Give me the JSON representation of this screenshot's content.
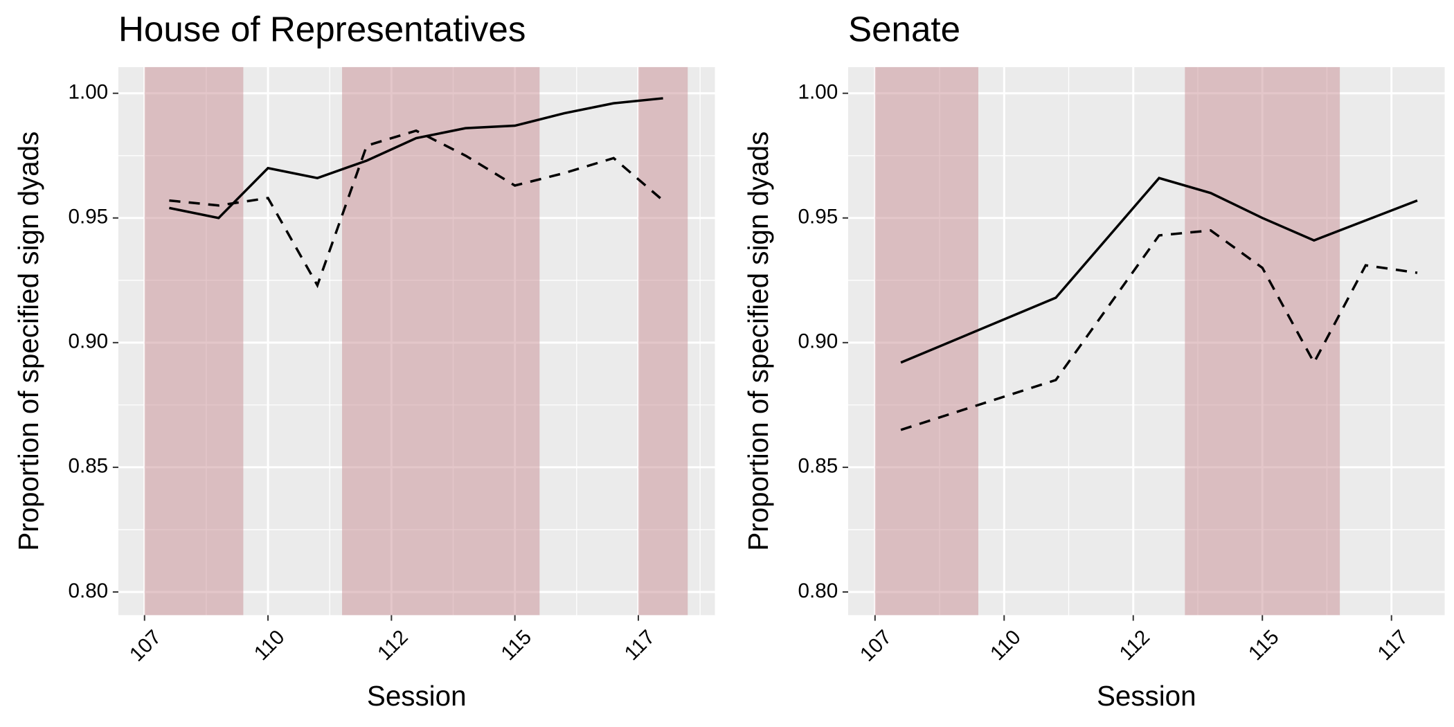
{
  "chart_data": [
    {
      "type": "line",
      "title": "House of Representatives",
      "xlabel": "Session",
      "ylabel": "Proportion of specified sign dyads",
      "xlim": [
        106.97,
        119.05
      ],
      "ylim": [
        0.7907,
        1.0105
      ],
      "xticks": [
        {
          "value": 107.5,
          "label": "107"
        },
        {
          "value": 110,
          "label": "110"
        },
        {
          "value": 112.5,
          "label": "112"
        },
        {
          "value": 115,
          "label": "115"
        },
        {
          "value": 117.5,
          "label": "117"
        }
      ],
      "yticks": [
        {
          "value": 0.8,
          "label": "0.80"
        },
        {
          "value": 0.85,
          "label": "0.85"
        },
        {
          "value": 0.9,
          "label": "0.90"
        },
        {
          "value": 0.95,
          "label": "0.95"
        },
        {
          "value": 1.0,
          "label": "1.00"
        }
      ],
      "grid": true,
      "shade_color": "#c98f95",
      "shaded_regions": [
        [
          107.5,
          109.5
        ],
        [
          111.5,
          115.5
        ],
        [
          117.5,
          118.5
        ]
      ],
      "series": [
        {
          "color": "#000000",
          "dashed": false,
          "x": [
            108,
            109,
            110,
            111,
            112,
            113,
            114,
            115,
            116,
            117,
            118
          ],
          "values": [
            0.954,
            0.95,
            0.97,
            0.966,
            0.973,
            0.982,
            0.986,
            0.987,
            0.992,
            0.996,
            0.998
          ]
        },
        {
          "color": "#000000",
          "dashed": true,
          "x": [
            108,
            109,
            110,
            111,
            112,
            113,
            114,
            115,
            116,
            117,
            118
          ],
          "values": [
            0.957,
            0.955,
            0.958,
            0.923,
            0.979,
            0.985,
            0.975,
            0.963,
            0.968,
            0.974,
            0.957
          ]
        }
      ]
    },
    {
      "type": "line",
      "title": "Senate",
      "xlabel": "Session",
      "ylabel": "Proportion of specified sign dyads",
      "xlim": [
        106.98,
        118.53
      ],
      "ylim": [
        0.7907,
        1.0105
      ],
      "xticks": [
        {
          "value": 107.5,
          "label": "107"
        },
        {
          "value": 110,
          "label": "110"
        },
        {
          "value": 112.5,
          "label": "112"
        },
        {
          "value": 115,
          "label": "115"
        },
        {
          "value": 117.5,
          "label": "117"
        }
      ],
      "yticks": [
        {
          "value": 0.8,
          "label": "0.80"
        },
        {
          "value": 0.85,
          "label": "0.85"
        },
        {
          "value": 0.9,
          "label": "0.90"
        },
        {
          "value": 0.95,
          "label": "0.95"
        },
        {
          "value": 1.0,
          "label": "1.00"
        }
      ],
      "grid": true,
      "shade_color": "#c98f95",
      "shaded_regions": [
        [
          107.5,
          109.5
        ],
        [
          113.5,
          116.5
        ]
      ],
      "series": [
        {
          "color": "#000000",
          "dashed": false,
          "x": [
            108,
            111,
            113,
            114,
            115,
            116,
            118
          ],
          "values": [
            0.892,
            0.918,
            0.966,
            0.96,
            0.95,
            0.941,
            0.957
          ]
        },
        {
          "color": "#000000",
          "dashed": true,
          "x": [
            108,
            111,
            113,
            114,
            115,
            116,
            117,
            118
          ],
          "values": [
            0.865,
            0.885,
            0.943,
            0.945,
            0.93,
            0.892,
            0.931,
            0.928
          ]
        }
      ]
    }
  ]
}
